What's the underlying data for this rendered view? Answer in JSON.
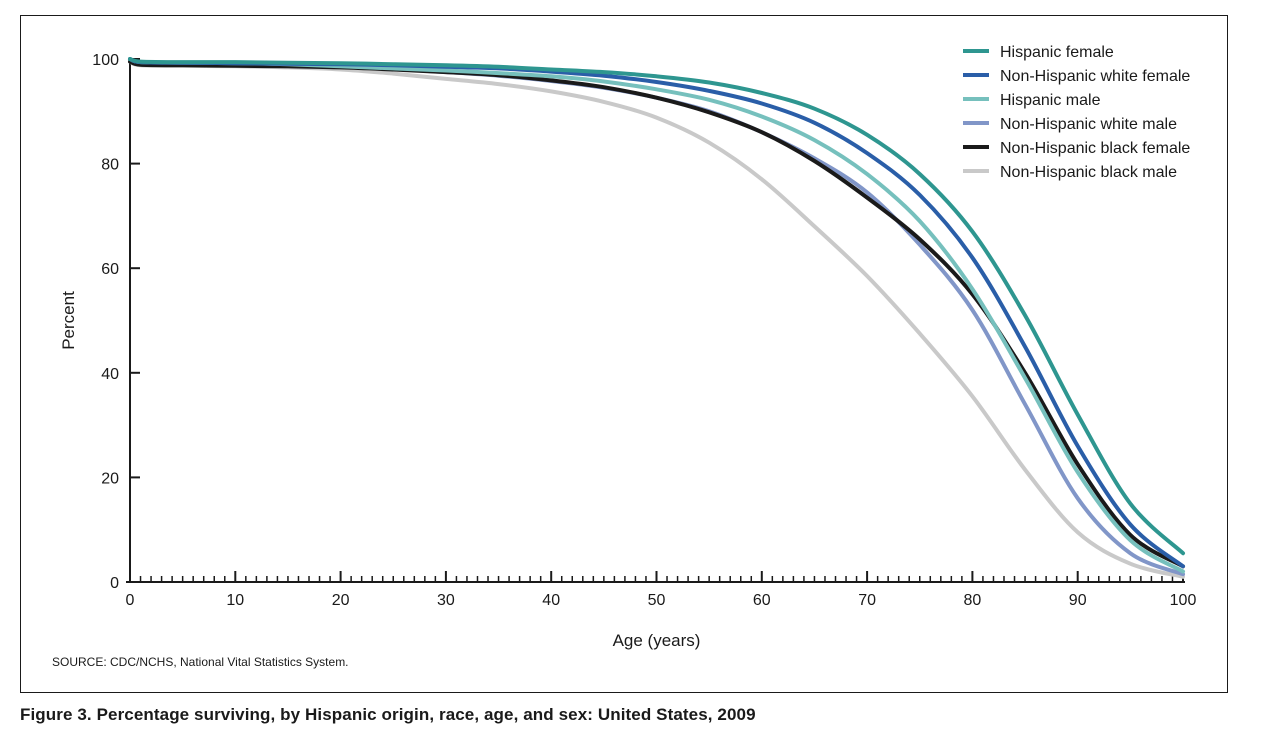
{
  "caption": "Figure 3. Percentage surviving, by Hispanic origin, race, age, and sex: United States, 2009",
  "source": "SOURCE: CDC/NCHS, National Vital Statistics System.",
  "chart_data": {
    "type": "line",
    "xlabel": "Age (years)",
    "ylabel": "Percent",
    "xlim": [
      0,
      100
    ],
    "ylim": [
      0,
      100
    ],
    "x_ticks": [
      0,
      10,
      20,
      30,
      40,
      50,
      60,
      70,
      80,
      90,
      100
    ],
    "y_ticks": [
      0,
      20,
      40,
      60,
      80,
      100
    ],
    "grid": false,
    "legend_position": "top-right",
    "x": [
      0,
      1,
      5,
      10,
      15,
      20,
      25,
      30,
      35,
      40,
      45,
      50,
      55,
      60,
      65,
      70,
      75,
      80,
      85,
      90,
      95,
      100
    ],
    "series": [
      {
        "name": "Hispanic female",
        "color": "#2e9690",
        "values": [
          100,
          99.5,
          99.4,
          99.4,
          99.3,
          99.2,
          99.0,
          98.8,
          98.5,
          98.0,
          97.5,
          96.7,
          95.5,
          93.5,
          90.5,
          85.5,
          78,
          67,
          51,
          32,
          15,
          5.5
        ]
      },
      {
        "name": "Non-Hispanic white female",
        "color": "#2a5ea8",
        "values": [
          100,
          99.4,
          99.3,
          99.2,
          99.1,
          99.0,
          98.8,
          98.5,
          98.2,
          97.6,
          96.8,
          95.6,
          93.9,
          91.5,
          87.8,
          82,
          74,
          62,
          45,
          26,
          11,
          3
        ]
      },
      {
        "name": "Hispanic male",
        "color": "#76c0bd",
        "values": [
          100,
          99.4,
          99.3,
          99.2,
          99.0,
          98.6,
          98.2,
          97.8,
          97.3,
          96.7,
          95.7,
          94.2,
          92.2,
          89,
          84.5,
          78,
          69,
          56,
          39,
          21,
          8,
          2
        ]
      },
      {
        "name": "Non-Hispanic white male",
        "color": "#8196c8",
        "values": [
          100,
          99.3,
          99.2,
          99.1,
          99.0,
          98.6,
          98.1,
          97.5,
          96.8,
          95.8,
          94.5,
          92.6,
          90,
          86,
          81,
          74.5,
          64.5,
          52,
          34,
          16,
          5.5,
          1.5
        ]
      },
      {
        "name": "Non-Hispanic black female",
        "color": "#1a1a1a",
        "values": [
          99.5,
          98.9,
          98.8,
          98.7,
          98.6,
          98.4,
          98.0,
          97.5,
          96.9,
          95.9,
          94.6,
          92.6,
          89.8,
          86,
          80.5,
          73.5,
          65.5,
          55,
          40,
          22.5,
          9,
          3
        ]
      },
      {
        "name": "Non-Hispanic black male",
        "color": "#c9c9c9",
        "values": [
          99.5,
          98.8,
          98.7,
          98.6,
          98.4,
          98.0,
          97.2,
          96.2,
          95.2,
          93.8,
          91.8,
          88.8,
          84,
          77,
          68,
          58.5,
          47.5,
          35.5,
          21.5,
          9.5,
          3.5,
          1
        ]
      }
    ]
  }
}
